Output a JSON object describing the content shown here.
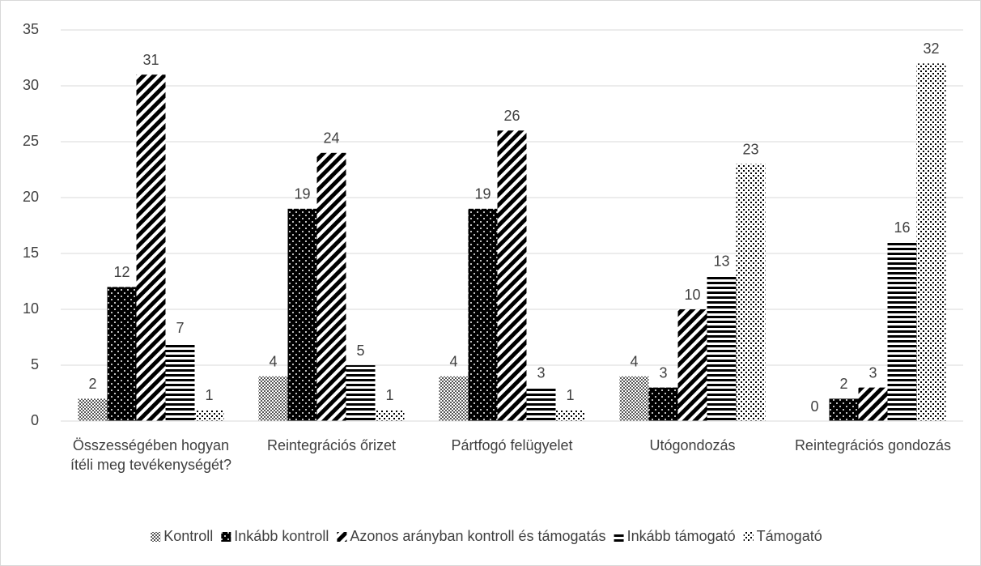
{
  "chart_data": {
    "type": "bar",
    "categories": [
      "Összességében hogyan ítéli meg tevékenységét?",
      "Reintegrációs őrizet",
      "Pártfogó felügyelet",
      "Utógondozás",
      "Reintegrációs gondozás"
    ],
    "series": [
      {
        "name": "Kontroll",
        "values": [
          2,
          4,
          4,
          4,
          0
        ]
      },
      {
        "name": "Inkább kontroll",
        "values": [
          12,
          19,
          19,
          3,
          2
        ]
      },
      {
        "name": "Azonos arányban kontroll és támogatás",
        "values": [
          31,
          24,
          26,
          10,
          3
        ]
      },
      {
        "name": "Inkább támogató",
        "values": [
          7,
          5,
          3,
          13,
          16
        ]
      },
      {
        "name": "Támogató",
        "values": [
          1,
          1,
          1,
          23,
          32
        ]
      }
    ],
    "ylim": [
      0,
      35
    ],
    "yticks": [
      0,
      5,
      10,
      15,
      20,
      25,
      30,
      35
    ],
    "grid": true,
    "legend": "bottom"
  }
}
